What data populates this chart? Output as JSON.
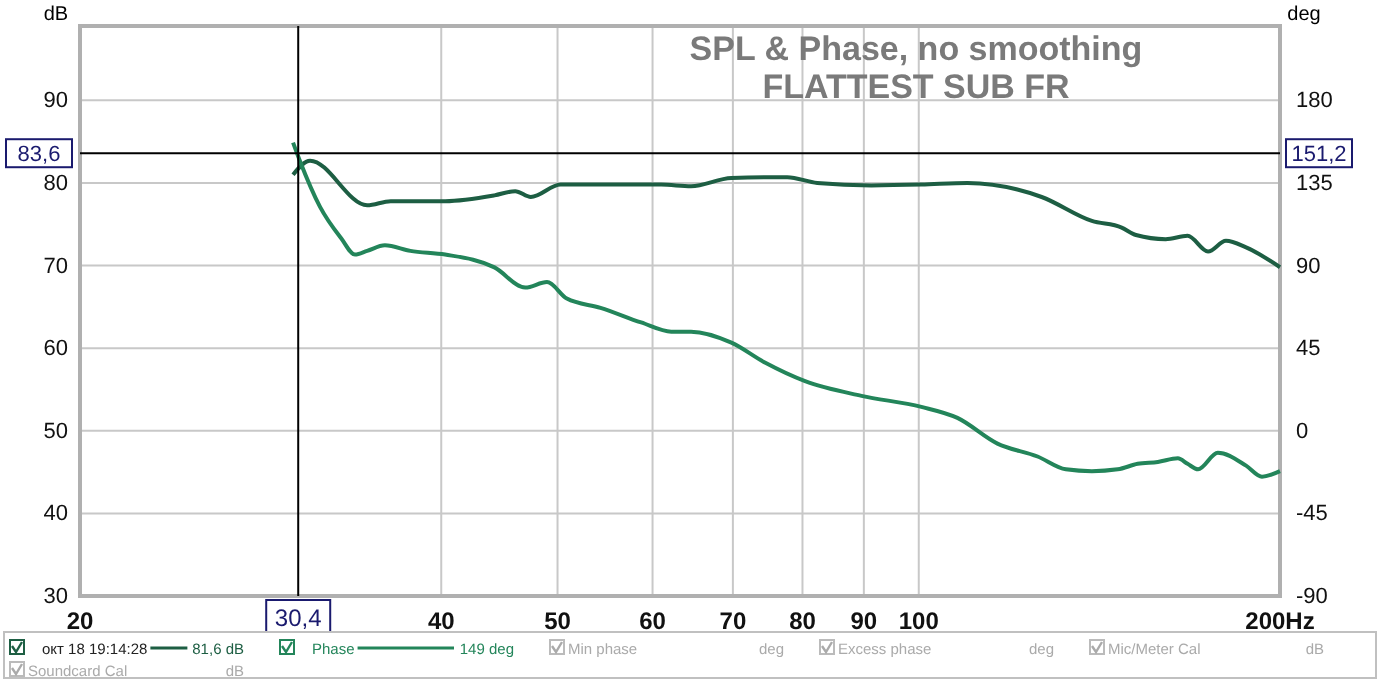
{
  "chart_data": {
    "type": "line",
    "title": "SPL & Phase, no smoothing",
    "subtitle": "FLATTEST SUB FR",
    "ylabel": "dB",
    "y2label": "deg",
    "log": "x",
    "xlim": [
      20,
      200
    ],
    "xticks": [
      20,
      40,
      50,
      60,
      70,
      80,
      90,
      100,
      {
        "value": 200,
        "label": "200Hz"
      }
    ],
    "ylim": [
      30,
      99
    ],
    "yticks": [
      30,
      40,
      50,
      60,
      70,
      80,
      90
    ],
    "y2lim": [
      -90,
      220.5
    ],
    "y2ticks": [
      -90,
      -45,
      0,
      45,
      90,
      135,
      180
    ],
    "grid": true,
    "legend": "bottom",
    "marker": "none",
    "line_style": "solid",
    "series": [
      {
        "name": "окт 18 19:14:28",
        "color": "#1d5e43",
        "x": [
          30.1,
          31.1,
          34.7,
          36.3,
          40.3,
          44.3,
          46.1,
          47.5,
          50.3,
          54.3,
          61,
          64.6,
          69.8,
          77.7,
          82.3,
          91.3,
          100.5,
          109.8,
          126.6,
          139.4,
          147.6,
          151.7,
          160.6,
          167.5,
          174.2,
          180.3,
          187.4,
          200
        ],
        "values": [
          81,
          82.7,
          77.3,
          77.8,
          77.8,
          78.5,
          79,
          78.3,
          79.8,
          79.8,
          79.8,
          79.6,
          80.6,
          80.7,
          80,
          79.7,
          79.8,
          80,
          78.3,
          75.4,
          74.6,
          73.7,
          73.2,
          73.6,
          71.7,
          73,
          72.2,
          69.8
        ]
      },
      {
        "name": "Phase",
        "color": "#23855a",
        "axis": "y2",
        "x": [
          30.1,
          30.5,
          31.7,
          33,
          33.9,
          34.7,
          35.9,
          37.7,
          40.3,
          44.3,
          47,
          49,
          50.9,
          54.3,
          58.7,
          62.2,
          64.6,
          69.8,
          74.5,
          80.4,
          89.6,
          100.5,
          107.7,
          116.3,
          125.6,
          132.6,
          139.4,
          146.5,
          152.2,
          158.2,
          164.4,
          167.5,
          170.9,
          177.5,
          187.4,
          193.2,
          200
        ],
        "values": [
          157,
          147,
          122,
          105,
          96,
          98,
          101,
          98,
          96,
          89,
          78,
          81,
          72,
          67,
          59,
          54,
          54,
          48,
          37,
          27,
          19,
          13,
          7,
          -7,
          -14,
          -21,
          -22,
          -21,
          -18,
          -17,
          -15,
          -18,
          -21,
          -12,
          -19,
          -25,
          -22
        ]
      }
    ],
    "ref_lines": [
      {
        "axis": "x",
        "value": 30.4,
        "label": "30,4",
        "color": "#000000"
      },
      {
        "axis": "y",
        "value": 83.6,
        "label": "83,6",
        "color": "#000000"
      }
    ],
    "annotations": [
      {
        "text": "151,2",
        "x": 200,
        "y": 83.6
      },
      "81,6 dB",
      "149 deg",
      "Min phase",
      "deg",
      "Excess phase",
      "deg",
      "Mic/Meter Cal",
      "dB",
      "Soundcard Cal",
      "dB"
    ]
  }
}
